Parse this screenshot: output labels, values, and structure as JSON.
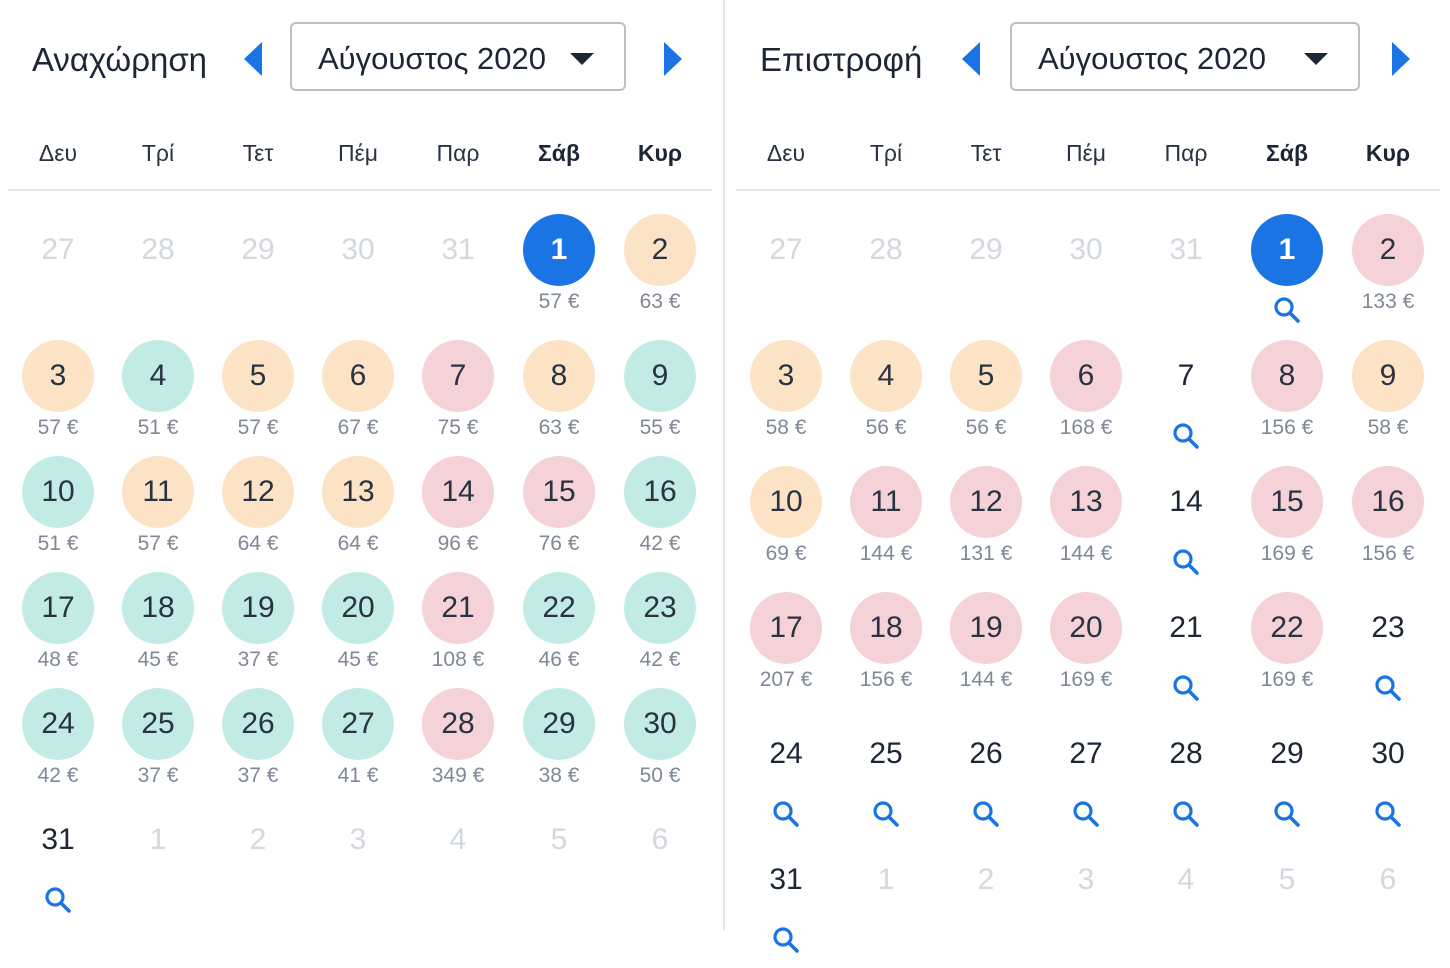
{
  "colors": {
    "accent": "#1a74e4",
    "low_price": "#c3ebe5",
    "mid_price": "#fde3c6",
    "high_price": "#f4d2d8",
    "muted_text": "#d3d8de"
  },
  "icons": {
    "prev": "chevron-left-icon",
    "next": "chevron-right-icon",
    "search": "search-icon",
    "dropdown": "caret-down-icon"
  },
  "weekdays": [
    "Δευ",
    "Τρί",
    "Τετ",
    "Πέμ",
    "Παρ",
    "Σάβ",
    "Κυρ"
  ],
  "weekend_bold": [
    false,
    false,
    false,
    false,
    false,
    true,
    true
  ],
  "panels": [
    {
      "id": "departure",
      "label": "Αναχώρηση",
      "month": "Αύγουστος 2020",
      "weeks": [
        [
          {
            "d": "27",
            "muted": true
          },
          {
            "d": "28",
            "muted": true
          },
          {
            "d": "29",
            "muted": true
          },
          {
            "d": "30",
            "muted": true
          },
          {
            "d": "31",
            "muted": true
          },
          {
            "d": "1",
            "price": "57 €",
            "color": "selected"
          },
          {
            "d": "2",
            "price": "63 €",
            "color": "mid"
          }
        ],
        [
          {
            "d": "3",
            "price": "57 €",
            "color": "mid"
          },
          {
            "d": "4",
            "price": "51 €",
            "color": "low"
          },
          {
            "d": "5",
            "price": "57 €",
            "color": "mid"
          },
          {
            "d": "6",
            "price": "67 €",
            "color": "mid"
          },
          {
            "d": "7",
            "price": "75 €",
            "color": "high"
          },
          {
            "d": "8",
            "price": "63 €",
            "color": "mid"
          },
          {
            "d": "9",
            "price": "55 €",
            "color": "low"
          }
        ],
        [
          {
            "d": "10",
            "price": "51 €",
            "color": "low"
          },
          {
            "d": "11",
            "price": "57 €",
            "color": "mid"
          },
          {
            "d": "12",
            "price": "64 €",
            "color": "mid"
          },
          {
            "d": "13",
            "price": "64 €",
            "color": "mid"
          },
          {
            "d": "14",
            "price": "96 €",
            "color": "high"
          },
          {
            "d": "15",
            "price": "76 €",
            "color": "high"
          },
          {
            "d": "16",
            "price": "42 €",
            "color": "low"
          }
        ],
        [
          {
            "d": "17",
            "price": "48 €",
            "color": "low"
          },
          {
            "d": "18",
            "price": "45 €",
            "color": "low"
          },
          {
            "d": "19",
            "price": "37 €",
            "color": "low"
          },
          {
            "d": "20",
            "price": "45 €",
            "color": "low"
          },
          {
            "d": "21",
            "price": "108 €",
            "color": "high"
          },
          {
            "d": "22",
            "price": "46 €",
            "color": "low"
          },
          {
            "d": "23",
            "price": "42 €",
            "color": "low"
          }
        ],
        [
          {
            "d": "24",
            "price": "42 €",
            "color": "low"
          },
          {
            "d": "25",
            "price": "37 €",
            "color": "low"
          },
          {
            "d": "26",
            "price": "37 €",
            "color": "low"
          },
          {
            "d": "27",
            "price": "41 €",
            "color": "low"
          },
          {
            "d": "28",
            "price": "349 €",
            "color": "high"
          },
          {
            "d": "29",
            "price": "38 €",
            "color": "low"
          },
          {
            "d": "30",
            "price": "50 €",
            "color": "low"
          }
        ],
        [
          {
            "d": "31",
            "search": true
          },
          {
            "d": "1",
            "muted": true
          },
          {
            "d": "2",
            "muted": true
          },
          {
            "d": "3",
            "muted": true
          },
          {
            "d": "4",
            "muted": true
          },
          {
            "d": "5",
            "muted": true
          },
          {
            "d": "6",
            "muted": true
          }
        ]
      ]
    },
    {
      "id": "return",
      "label": "Επιστροφή",
      "month": "Αύγουστος 2020",
      "weeks": [
        [
          {
            "d": "27",
            "muted": true
          },
          {
            "d": "28",
            "muted": true
          },
          {
            "d": "29",
            "muted": true
          },
          {
            "d": "30",
            "muted": true
          },
          {
            "d": "31",
            "muted": true
          },
          {
            "d": "1",
            "color": "selected",
            "search": true
          },
          {
            "d": "2",
            "price": "133 €",
            "color": "high"
          }
        ],
        [
          {
            "d": "3",
            "price": "58 €",
            "color": "mid"
          },
          {
            "d": "4",
            "price": "56 €",
            "color": "mid"
          },
          {
            "d": "5",
            "price": "56 €",
            "color": "mid"
          },
          {
            "d": "6",
            "price": "168 €",
            "color": "high"
          },
          {
            "d": "7",
            "search": true
          },
          {
            "d": "8",
            "price": "156 €",
            "color": "high"
          },
          {
            "d": "9",
            "price": "58 €",
            "color": "mid"
          }
        ],
        [
          {
            "d": "10",
            "price": "69 €",
            "color": "mid"
          },
          {
            "d": "11",
            "price": "144 €",
            "color": "high"
          },
          {
            "d": "12",
            "price": "131 €",
            "color": "high"
          },
          {
            "d": "13",
            "price": "144 €",
            "color": "high"
          },
          {
            "d": "14",
            "search": true
          },
          {
            "d": "15",
            "price": "169 €",
            "color": "high"
          },
          {
            "d": "16",
            "price": "156 €",
            "color": "high"
          }
        ],
        [
          {
            "d": "17",
            "price": "207 €",
            "color": "high"
          },
          {
            "d": "18",
            "price": "156 €",
            "color": "high"
          },
          {
            "d": "19",
            "price": "144 €",
            "color": "high"
          },
          {
            "d": "20",
            "price": "169 €",
            "color": "high"
          },
          {
            "d": "21",
            "search": true
          },
          {
            "d": "22",
            "price": "169 €",
            "color": "high"
          },
          {
            "d": "23",
            "search": true
          }
        ],
        [
          {
            "d": "24",
            "search": true
          },
          {
            "d": "25",
            "search": true
          },
          {
            "d": "26",
            "search": true
          },
          {
            "d": "27",
            "search": true
          },
          {
            "d": "28",
            "search": true
          },
          {
            "d": "29",
            "search": true
          },
          {
            "d": "30",
            "search": true
          }
        ],
        [
          {
            "d": "31",
            "search": true
          },
          {
            "d": "1",
            "muted": true
          },
          {
            "d": "2",
            "muted": true
          },
          {
            "d": "3",
            "muted": true
          },
          {
            "d": "4",
            "muted": true
          },
          {
            "d": "5",
            "muted": true
          },
          {
            "d": "6",
            "muted": true
          }
        ]
      ]
    }
  ]
}
